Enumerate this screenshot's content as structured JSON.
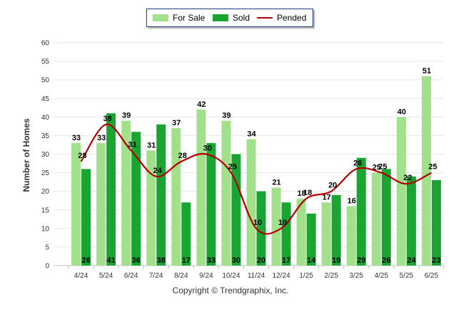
{
  "chart_data": {
    "type": "bar",
    "title": "",
    "xlabel": "",
    "ylabel": "Number of Homes",
    "ylim": [
      0,
      60
    ],
    "yticks": [
      0,
      5,
      10,
      15,
      20,
      25,
      30,
      35,
      40,
      45,
      50,
      55,
      60
    ],
    "grid": true,
    "legend_position": "top",
    "categories": [
      "4/24",
      "5/24",
      "6/24",
      "7/24",
      "8/24",
      "9/24",
      "10/24",
      "11/24",
      "12/24",
      "1/25",
      "2/25",
      "3/25",
      "4/25",
      "5/25",
      "6/25"
    ],
    "series": [
      {
        "name": "For Sale",
        "type": "bar",
        "color": "#a3e08c",
        "values": [
          33,
          33,
          39,
          31,
          37,
          42,
          39,
          34,
          21,
          18,
          17,
          16,
          25,
          40,
          51
        ]
      },
      {
        "name": "Sold",
        "type": "bar",
        "color": "#1aa532",
        "values": [
          26,
          41,
          36,
          38,
          17,
          33,
          30,
          20,
          17,
          14,
          19,
          29,
          26,
          24,
          23
        ]
      },
      {
        "name": "Pended",
        "type": "line",
        "color": "#b30000",
        "values": [
          28,
          38,
          31,
          24,
          28,
          30,
          25,
          10,
          10,
          18,
          20,
          26,
          25,
          22,
          25
        ]
      }
    ]
  },
  "footer": {
    "copyright": "Copyright © Trendgraphix, Inc."
  }
}
